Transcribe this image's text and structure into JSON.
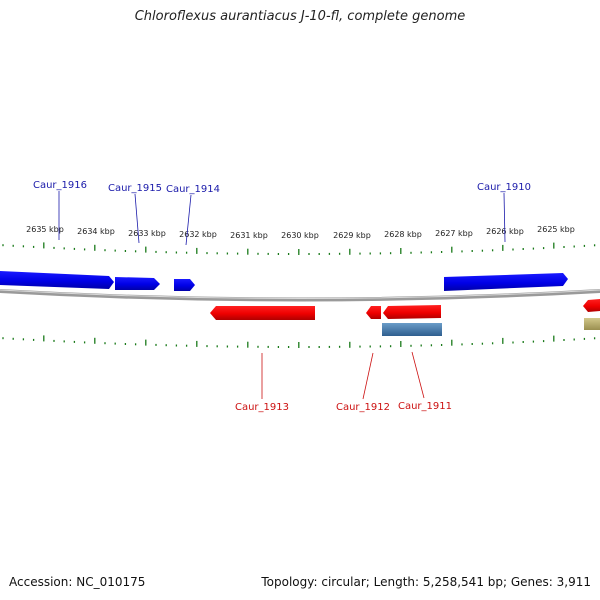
{
  "title": "Chloroflexus aurantiacus J-10-fl, complete genome",
  "footer": {
    "accession": "Accession: NC_010175",
    "stats": "Topology: circular; Length: 5,258,541 bp; Genes: 3,911"
  },
  "colors": {
    "forward_gene": "#0000ee",
    "reverse_gene": "#ee0000",
    "rna_gene": "#4a7fb0",
    "pseudo_gene": "#b8ad6a",
    "backbone": "#888888",
    "ticks": "#1a7a1a",
    "forward_label": "#1a1aaa",
    "reverse_label": "#cc1111"
  },
  "scale": {
    "unit": "kbp",
    "labels": [
      "2635 kbp",
      "2634 kbp",
      "2633 kbp",
      "2632 kbp",
      "2631 kbp",
      "2630 kbp",
      "2629 kbp",
      "2628 kbp",
      "2627 kbp",
      "2626 kbp",
      "2625 kbp"
    ]
  },
  "forward_labels": [
    "Caur_1916",
    "Caur_1915",
    "Caur_1914",
    "Caur_1910"
  ],
  "reverse_labels": [
    "Caur_1913",
    "Caur_1912",
    "Caur_1911"
  ]
}
